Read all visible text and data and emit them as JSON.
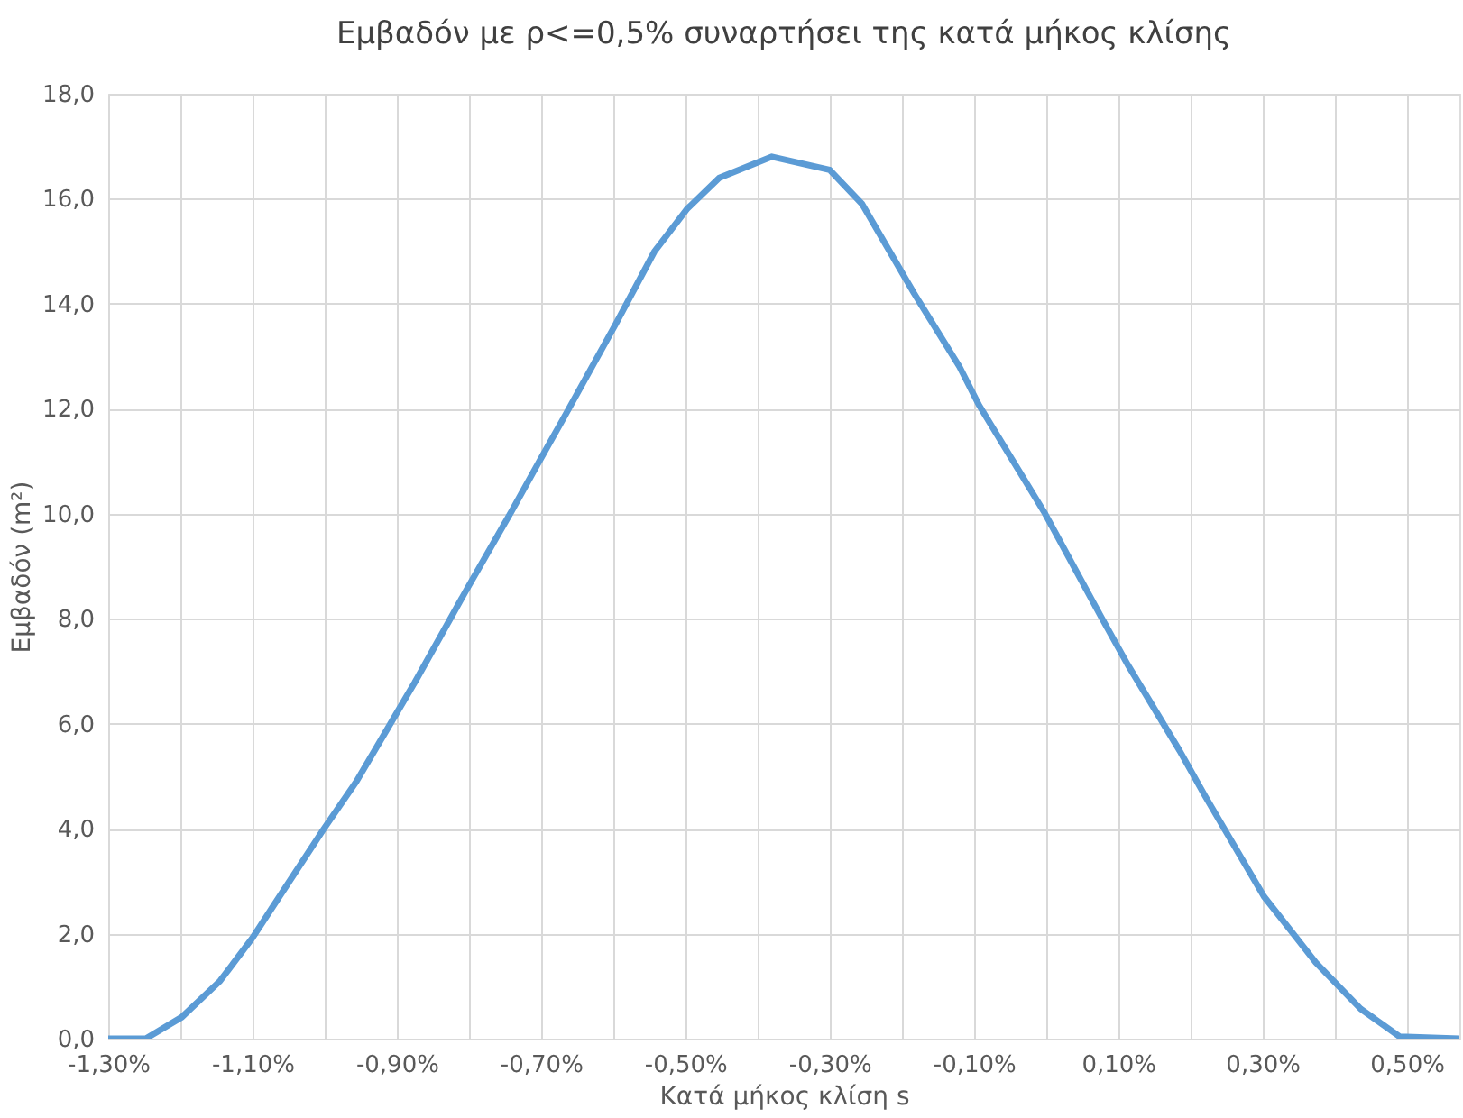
{
  "chart_data": {
    "type": "line",
    "title": "Εμβαδόν με ρ<=0,5% συναρτήσει της κατά μήκος κλίσης",
    "xlabel": "Κατά μήκος κλίση s",
    "ylabel": "Εμβαδόν (m²)",
    "x": [
      -1.3,
      -1.248,
      -1.198,
      -1.145,
      -1.1,
      -1.073,
      -1.001,
      -0.956,
      -0.902,
      -0.875,
      -0.803,
      -0.74,
      -0.704,
      -0.668,
      -0.597,
      -0.543,
      -0.498,
      -0.453,
      -0.38,
      -0.3,
      -0.255,
      -0.183,
      -0.12,
      -0.093,
      -0.003,
      0.077,
      0.113,
      0.185,
      0.221,
      0.302,
      0.374,
      0.436,
      0.49,
      0.573
    ],
    "series": [
      {
        "color": "#5b9bd5",
        "values": [
          0,
          0,
          0.41,
          1.1,
          1.92,
          2.49,
          4.0,
          4.9,
          6.16,
          6.79,
          8.56,
          10.07,
          10.96,
          11.84,
          13.6,
          14.99,
          15.8,
          16.4,
          16.8,
          16.55,
          15.9,
          14.2,
          12.8,
          12.07,
          10.04,
          8.02,
          7.13,
          5.49,
          4.61,
          2.71,
          1.45,
          0.57,
          0.04,
          0
        ]
      }
    ],
    "xlim": [
      -1.3,
      0.573
    ],
    "xticks": [
      {
        "value": -1.3,
        "label": "-1,30%"
      },
      {
        "value": -1.2,
        "label": null
      },
      {
        "value": -1.1,
        "label": "-1,10%"
      },
      {
        "value": -1.0,
        "label": null
      },
      {
        "value": -0.9,
        "label": "-0,90%"
      },
      {
        "value": -0.8,
        "label": null
      },
      {
        "value": -0.7,
        "label": "-0,70%"
      },
      {
        "value": -0.6,
        "label": null
      },
      {
        "value": -0.5,
        "label": "-0,50%"
      },
      {
        "value": -0.4,
        "label": null
      },
      {
        "value": -0.3,
        "label": "-0,30%"
      },
      {
        "value": -0.2,
        "label": null
      },
      {
        "value": -0.1,
        "label": "-0,10%"
      },
      {
        "value": 0.0,
        "label": null
      },
      {
        "value": 0.1,
        "label": "0,10%"
      },
      {
        "value": 0.2,
        "label": null
      },
      {
        "value": 0.3,
        "label": "0,30%"
      },
      {
        "value": 0.4,
        "label": null
      },
      {
        "value": 0.5,
        "label": "0,50%"
      }
    ],
    "ylim": [
      0,
      18
    ],
    "yticks": [
      {
        "value": 0,
        "label": "0,0"
      },
      {
        "value": 2,
        "label": "2,0"
      },
      {
        "value": 4,
        "label": "4,0"
      },
      {
        "value": 6,
        "label": "6,0"
      },
      {
        "value": 8,
        "label": "8,0"
      },
      {
        "value": 10,
        "label": "10,0"
      },
      {
        "value": 12,
        "label": "12,0"
      },
      {
        "value": 14,
        "label": "14,0"
      },
      {
        "value": 16,
        "label": "16,0"
      },
      {
        "value": 18,
        "label": "18,0"
      }
    ],
    "grid": true,
    "line_style": "solid",
    "marker": "none"
  }
}
